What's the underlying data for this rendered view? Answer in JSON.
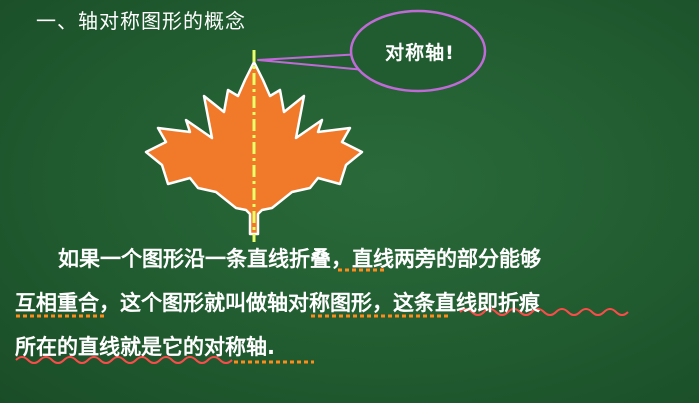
{
  "slide": {
    "heading": "一、轴对称图形的概念",
    "bubble_text": "对称轴!",
    "paragraph": {
      "line1": "如果一个图形沿一条直线折叠，直线两旁的部分能够",
      "line2": "互相重合，这个图形就叫做轴对称图形，这条直线即折痕",
      "line3": "所在的直线就是它的对称轴."
    }
  },
  "colors": {
    "board": "#215c30",
    "leaf": "#f07a2a",
    "leaf_outline": "#ffffff",
    "axis_line": "#e8ff6a",
    "bubble_border": "#c06ad8",
    "underline_orange": "#ff8c1a",
    "underline_red": "#ff4a4a"
  }
}
